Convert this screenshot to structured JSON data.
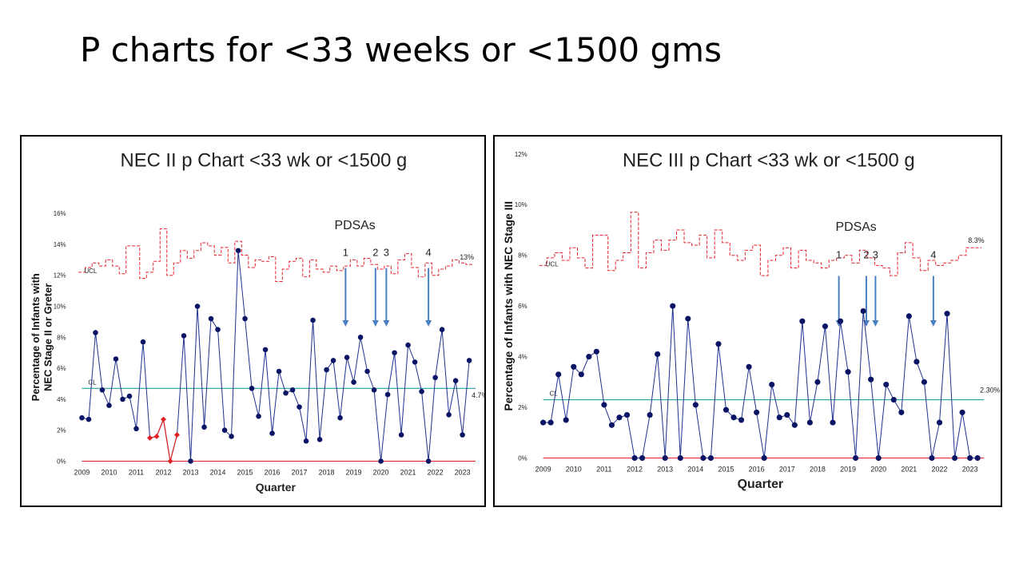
{
  "slide": {
    "title": "P charts for <33 weeks or <1500 gms"
  },
  "colors": {
    "data_line": "#1f2f8f",
    "data_marker": "#0a1464",
    "ucl": "#e8202a",
    "cl": "#2aa0a0",
    "arrow": "#4a7fc1",
    "red_points": "#e02020"
  },
  "chart_data": [
    {
      "type": "line",
      "title": "NEC II p Chart <33 wk or <1500 g",
      "xlabel": "Quarter",
      "ylabel": "Percentage of Infants with NEC Stage II or Greter",
      "ylim": [
        0,
        16
      ],
      "yticks": [
        "0%",
        "2%",
        "4%",
        "6%",
        "8%",
        "10%",
        "12%",
        "14%",
        "16%"
      ],
      "categories": [
        "2009",
        "2010",
        "2011",
        "2012",
        "2013",
        "2014",
        "2015",
        "2016",
        "2017",
        "2018",
        "2019",
        "2020",
        "2021",
        "2022",
        "2023"
      ],
      "annotation_title": "PDSAs",
      "pdsa_labels": [
        "1",
        "2",
        "3",
        "4"
      ],
      "pdsa_x": [
        2018.7,
        2019.8,
        2020.2,
        2021.75
      ],
      "ucl_label": "UCL",
      "cl_label": "CL",
      "ucl_end_label": "13%",
      "cl_end_label": "4.7%",
      "cl_value": 4.7,
      "grid": false,
      "series": [
        {
          "role": "data",
          "x": [
            2009.0,
            2009.25,
            2009.5,
            2009.75,
            2010.0,
            2010.25,
            2010.5,
            2010.75,
            2011.0,
            2011.25,
            2011.5,
            2011.75,
            2012.0,
            2012.25,
            2012.5,
            2012.75,
            2013.0,
            2013.25,
            2013.5,
            2013.75,
            2014.0,
            2014.25,
            2014.5,
            2014.75,
            2015.0,
            2015.25,
            2015.5,
            2015.75,
            2016.0,
            2016.25,
            2016.5,
            2016.75,
            2017.0,
            2017.25,
            2017.5,
            2017.75,
            2018.0,
            2018.25,
            2018.5,
            2018.75,
            2019.0,
            2019.25,
            2019.5,
            2019.75,
            2020.0,
            2020.25,
            2020.5,
            2020.75,
            2021.0,
            2021.25,
            2021.5,
            2021.75,
            2022.0,
            2022.25,
            2022.5,
            2022.75,
            2023.0,
            2023.25
          ],
          "values": [
            2.8,
            2.7,
            8.3,
            4.6,
            3.6,
            6.6,
            4.0,
            4.2,
            2.1,
            7.7,
            1.5,
            1.6,
            2.7,
            0.0,
            1.7,
            8.1,
            0.0,
            10.0,
            2.2,
            9.2,
            8.5,
            2.0,
            1.6,
            13.6,
            9.2,
            4.7,
            2.9,
            7.2,
            1.8,
            5.8,
            4.4,
            4.6,
            3.5,
            1.3,
            9.1,
            1.4,
            5.9,
            6.5,
            2.8,
            6.7,
            5.1,
            8.0,
            5.8,
            4.6,
            0.0,
            4.3,
            7.0,
            1.7,
            7.5,
            6.4,
            4.5,
            0.0,
            5.4,
            8.5,
            3.0,
            5.2,
            1.7,
            6.5
          ],
          "highlighted_points": [
            10,
            11,
            12,
            13,
            14
          ]
        },
        {
          "role": "ucl",
          "x": [
            2009.0,
            2009.25,
            2009.5,
            2009.75,
            2010.0,
            2010.25,
            2010.5,
            2010.75,
            2011.0,
            2011.25,
            2011.5,
            2011.75,
            2012.0,
            2012.25,
            2012.5,
            2012.75,
            2013.0,
            2013.25,
            2013.5,
            2013.75,
            2014.0,
            2014.25,
            2014.5,
            2014.75,
            2015.0,
            2015.25,
            2015.5,
            2015.75,
            2016.0,
            2016.25,
            2016.5,
            2016.75,
            2017.0,
            2017.25,
            2017.5,
            2017.75,
            2018.0,
            2018.25,
            2018.5,
            2018.75,
            2019.0,
            2019.25,
            2019.5,
            2019.75,
            2020.0,
            2020.25,
            2020.5,
            2020.75,
            2021.0,
            2021.25,
            2021.5,
            2021.75,
            2022.0,
            2022.25,
            2022.5,
            2022.75,
            2023.0,
            2023.25
          ],
          "values": [
            12.2,
            12.5,
            12.8,
            12.6,
            13.0,
            12.6,
            12.1,
            13.9,
            13.9,
            11.8,
            12.2,
            12.9,
            15.0,
            12.0,
            12.8,
            13.6,
            13.1,
            13.6,
            14.1,
            13.9,
            13.3,
            13.8,
            12.8,
            14.2,
            13.3,
            12.5,
            13.0,
            12.9,
            13.2,
            11.6,
            12.4,
            12.9,
            13.1,
            11.9,
            13.0,
            12.4,
            12.2,
            12.6,
            12.3,
            12.6,
            13.0,
            12.6,
            13.1,
            12.7,
            12.4,
            12.6,
            12.1,
            13.0,
            13.4,
            12.5,
            11.9,
            12.8,
            12.0,
            12.4,
            12.6,
            13.0,
            12.8,
            12.7
          ]
        }
      ]
    },
    {
      "type": "line",
      "title": "NEC III p Chart <33 wk or <1500 g",
      "xlabel": "Quarter",
      "ylabel": "Percentage of Infants with NEC Stage III",
      "ylim": [
        0,
        12
      ],
      "yticks": [
        "0%",
        "2%",
        "4%",
        "6%",
        "8%",
        "10%",
        "12%"
      ],
      "categories": [
        "2009",
        "2010",
        "2011",
        "2012",
        "2013",
        "2014",
        "2015",
        "2016",
        "2017",
        "2018",
        "2019",
        "2020",
        "2021",
        "2022",
        "2023"
      ],
      "annotation_title": "PDSAs",
      "pdsa_labels": [
        "1",
        "2",
        "3",
        "4"
      ],
      "pdsa_x": [
        2018.7,
        2019.6,
        2019.9,
        2021.8
      ],
      "ucl_label": "UCL",
      "cl_label": "CL",
      "ucl_end_label": "8.3%",
      "cl_end_label": "2.30%",
      "cl_value": 2.3,
      "grid": false,
      "series": [
        {
          "role": "data",
          "x": [
            2009.0,
            2009.25,
            2009.5,
            2009.75,
            2010.0,
            2010.25,
            2010.5,
            2010.75,
            2011.0,
            2011.25,
            2011.5,
            2011.75,
            2012.0,
            2012.25,
            2012.5,
            2012.75,
            2013.0,
            2013.25,
            2013.5,
            2013.75,
            2014.0,
            2014.25,
            2014.5,
            2014.75,
            2015.0,
            2015.25,
            2015.5,
            2015.75,
            2016.0,
            2016.25,
            2016.5,
            2016.75,
            2017.0,
            2017.25,
            2017.5,
            2017.75,
            2018.0,
            2018.25,
            2018.5,
            2018.75,
            2019.0,
            2019.25,
            2019.5,
            2019.75,
            2020.0,
            2020.25,
            2020.5,
            2020.75,
            2021.0,
            2021.25,
            2021.5,
            2021.75,
            2022.0,
            2022.25,
            2022.5,
            2022.75,
            2023.0,
            2023.25
          ],
          "values": [
            1.4,
            1.4,
            3.3,
            1.5,
            3.6,
            3.3,
            4.0,
            4.2,
            2.1,
            1.3,
            1.6,
            1.7,
            0.0,
            0.0,
            1.7,
            4.1,
            0.0,
            6.0,
            0.0,
            5.5,
            2.1,
            0.0,
            0.0,
            4.5,
            1.9,
            1.6,
            1.5,
            3.6,
            1.8,
            0.0,
            2.9,
            1.6,
            1.7,
            1.3,
            5.4,
            1.4,
            3.0,
            5.2,
            1.4,
            5.4,
            3.4,
            0.0,
            5.8,
            3.1,
            0.0,
            2.9,
            2.3,
            1.8,
            5.6,
            3.8,
            3.0,
            0.0,
            1.4,
            5.7,
            0.0,
            1.8,
            0.0,
            0.0
          ]
        },
        {
          "role": "ucl",
          "x": [
            2009.0,
            2009.25,
            2009.5,
            2009.75,
            2010.0,
            2010.25,
            2010.5,
            2010.75,
            2011.0,
            2011.25,
            2011.5,
            2011.75,
            2012.0,
            2012.25,
            2012.5,
            2012.75,
            2013.0,
            2013.25,
            2013.5,
            2013.75,
            2014.0,
            2014.25,
            2014.5,
            2014.75,
            2015.0,
            2015.25,
            2015.5,
            2015.75,
            2016.0,
            2016.25,
            2016.5,
            2016.75,
            2017.0,
            2017.25,
            2017.5,
            2017.75,
            2018.0,
            2018.25,
            2018.5,
            2018.75,
            2019.0,
            2019.25,
            2019.5,
            2019.75,
            2020.0,
            2020.25,
            2020.5,
            2020.75,
            2021.0,
            2021.25,
            2021.5,
            2021.75,
            2022.0,
            2022.25,
            2022.5,
            2022.75,
            2023.0,
            2023.25
          ],
          "values": [
            7.6,
            7.9,
            8.1,
            7.8,
            8.3,
            7.9,
            7.5,
            8.8,
            8.8,
            7.4,
            7.8,
            8.1,
            9.7,
            7.5,
            8.1,
            8.6,
            8.2,
            8.6,
            9.0,
            8.5,
            8.4,
            8.8,
            7.9,
            9.0,
            8.5,
            8.0,
            7.8,
            8.2,
            8.4,
            7.2,
            7.8,
            8.0,
            8.3,
            7.5,
            8.2,
            7.8,
            7.7,
            7.5,
            7.8,
            7.9,
            8.0,
            7.7,
            8.2,
            7.9,
            7.6,
            7.5,
            7.2,
            8.1,
            8.5,
            7.9,
            7.4,
            7.8,
            7.6,
            7.7,
            7.8,
            8.0,
            8.3,
            8.3
          ]
        }
      ]
    }
  ]
}
